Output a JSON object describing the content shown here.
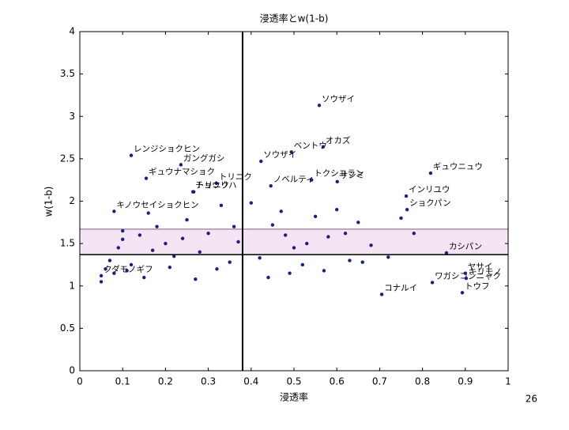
{
  "page_number": "26",
  "chart_data": {
    "type": "scatter",
    "title": "浸透率とw(1-b)",
    "x_label": "浸透率",
    "y_label": "w(1-b)",
    "xlim": [
      0,
      1
    ],
    "ylim": [
      0,
      4
    ],
    "xticks": [
      0,
      0.1,
      0.2,
      0.3,
      0.4,
      0.5,
      0.6,
      0.7,
      0.8,
      0.9,
      1
    ],
    "yticks": [
      0,
      0.5,
      1,
      1.5,
      2,
      2.5,
      3,
      3.5,
      4
    ],
    "vline": 0.38,
    "hline": 1.37,
    "band": [
      1.37,
      1.67
    ],
    "band_color": "#f4e4f4",
    "grid": false,
    "series": [
      {
        "color": "#1c1c8c",
        "x": [
          0.559,
          0.494,
          0.568,
          0.423,
          0.541,
          0.446,
          0.601,
          0.819,
          0.762,
          0.764,
          0.12,
          0.236,
          0.155,
          0.319,
          0.266,
          0.264,
          0.08,
          0.823,
          0.9,
          0.893,
          0.705,
          0.902,
          0.856,
          0.05,
          0.06,
          0.07,
          0.09,
          0.1,
          0.12,
          0.14,
          0.16,
          0.18,
          0.2,
          0.22,
          0.25,
          0.28,
          0.3,
          0.33,
          0.35,
          0.37,
          0.4,
          0.42,
          0.45,
          0.47,
          0.5,
          0.52,
          0.55,
          0.58,
          0.6,
          0.63,
          0.65,
          0.68,
          0.72,
          0.75,
          0.78,
          0.05,
          0.08,
          0.11,
          0.15,
          0.21,
          0.27,
          0.32,
          0.44,
          0.49,
          0.57,
          0.66,
          0.1,
          0.17,
          0.24,
          0.36,
          0.48,
          0.53,
          0.62
        ],
        "values": [
          3.13,
          2.58,
          2.64,
          2.47,
          2.25,
          2.18,
          2.23,
          2.33,
          2.06,
          1.9,
          2.54,
          2.43,
          2.27,
          2.21,
          2.11,
          2.11,
          1.88,
          1.04,
          1.15,
          0.92,
          0.9,
          1.09,
          1.39,
          1.12,
          1.2,
          1.3,
          1.45,
          1.55,
          1.25,
          1.6,
          1.86,
          1.7,
          1.5,
          1.35,
          1.78,
          1.4,
          1.62,
          1.95,
          1.28,
          1.52,
          1.98,
          1.33,
          1.72,
          1.88,
          1.45,
          1.25,
          1.82,
          1.58,
          1.9,
          1.3,
          1.75,
          1.48,
          1.34,
          1.8,
          1.62,
          1.05,
          1.15,
          1.18,
          1.1,
          1.22,
          1.08,
          1.2,
          1.1,
          1.15,
          1.18,
          1.28,
          1.65,
          1.42,
          1.56,
          1.7,
          1.6,
          1.5,
          1.62
        ],
        "labels": [
          "ソウザイ",
          "ベントウ",
          "オカズ",
          "ソウザイ",
          "トクシユラン",
          "ノベルティ",
          "サシミ",
          "ギュウニュウ",
          "インリユウ",
          "ショクパン",
          "レンジショクヒン",
          "ガングガシ",
          "ギュウナマショク",
          "トリニク",
          "トリニク",
          "チョウリハ",
          "キノウセイショクヒン",
          "ワガシコンニャク",
          "ヤサイ",
          "トウフ",
          "コナルイ",
          "キリモノ",
          "カシパン",
          "クダモノギフ",
          null,
          null,
          null,
          null,
          null,
          null,
          null,
          null,
          null,
          null,
          null,
          null,
          null,
          null,
          null,
          null,
          null,
          null,
          null,
          null,
          null,
          null,
          null,
          null,
          null,
          null,
          null,
          null,
          null,
          null,
          null,
          null,
          null,
          null,
          null,
          null,
          null,
          null,
          null,
          null,
          null,
          null,
          null,
          null,
          null,
          null,
          null,
          null,
          null
        ]
      }
    ]
  }
}
